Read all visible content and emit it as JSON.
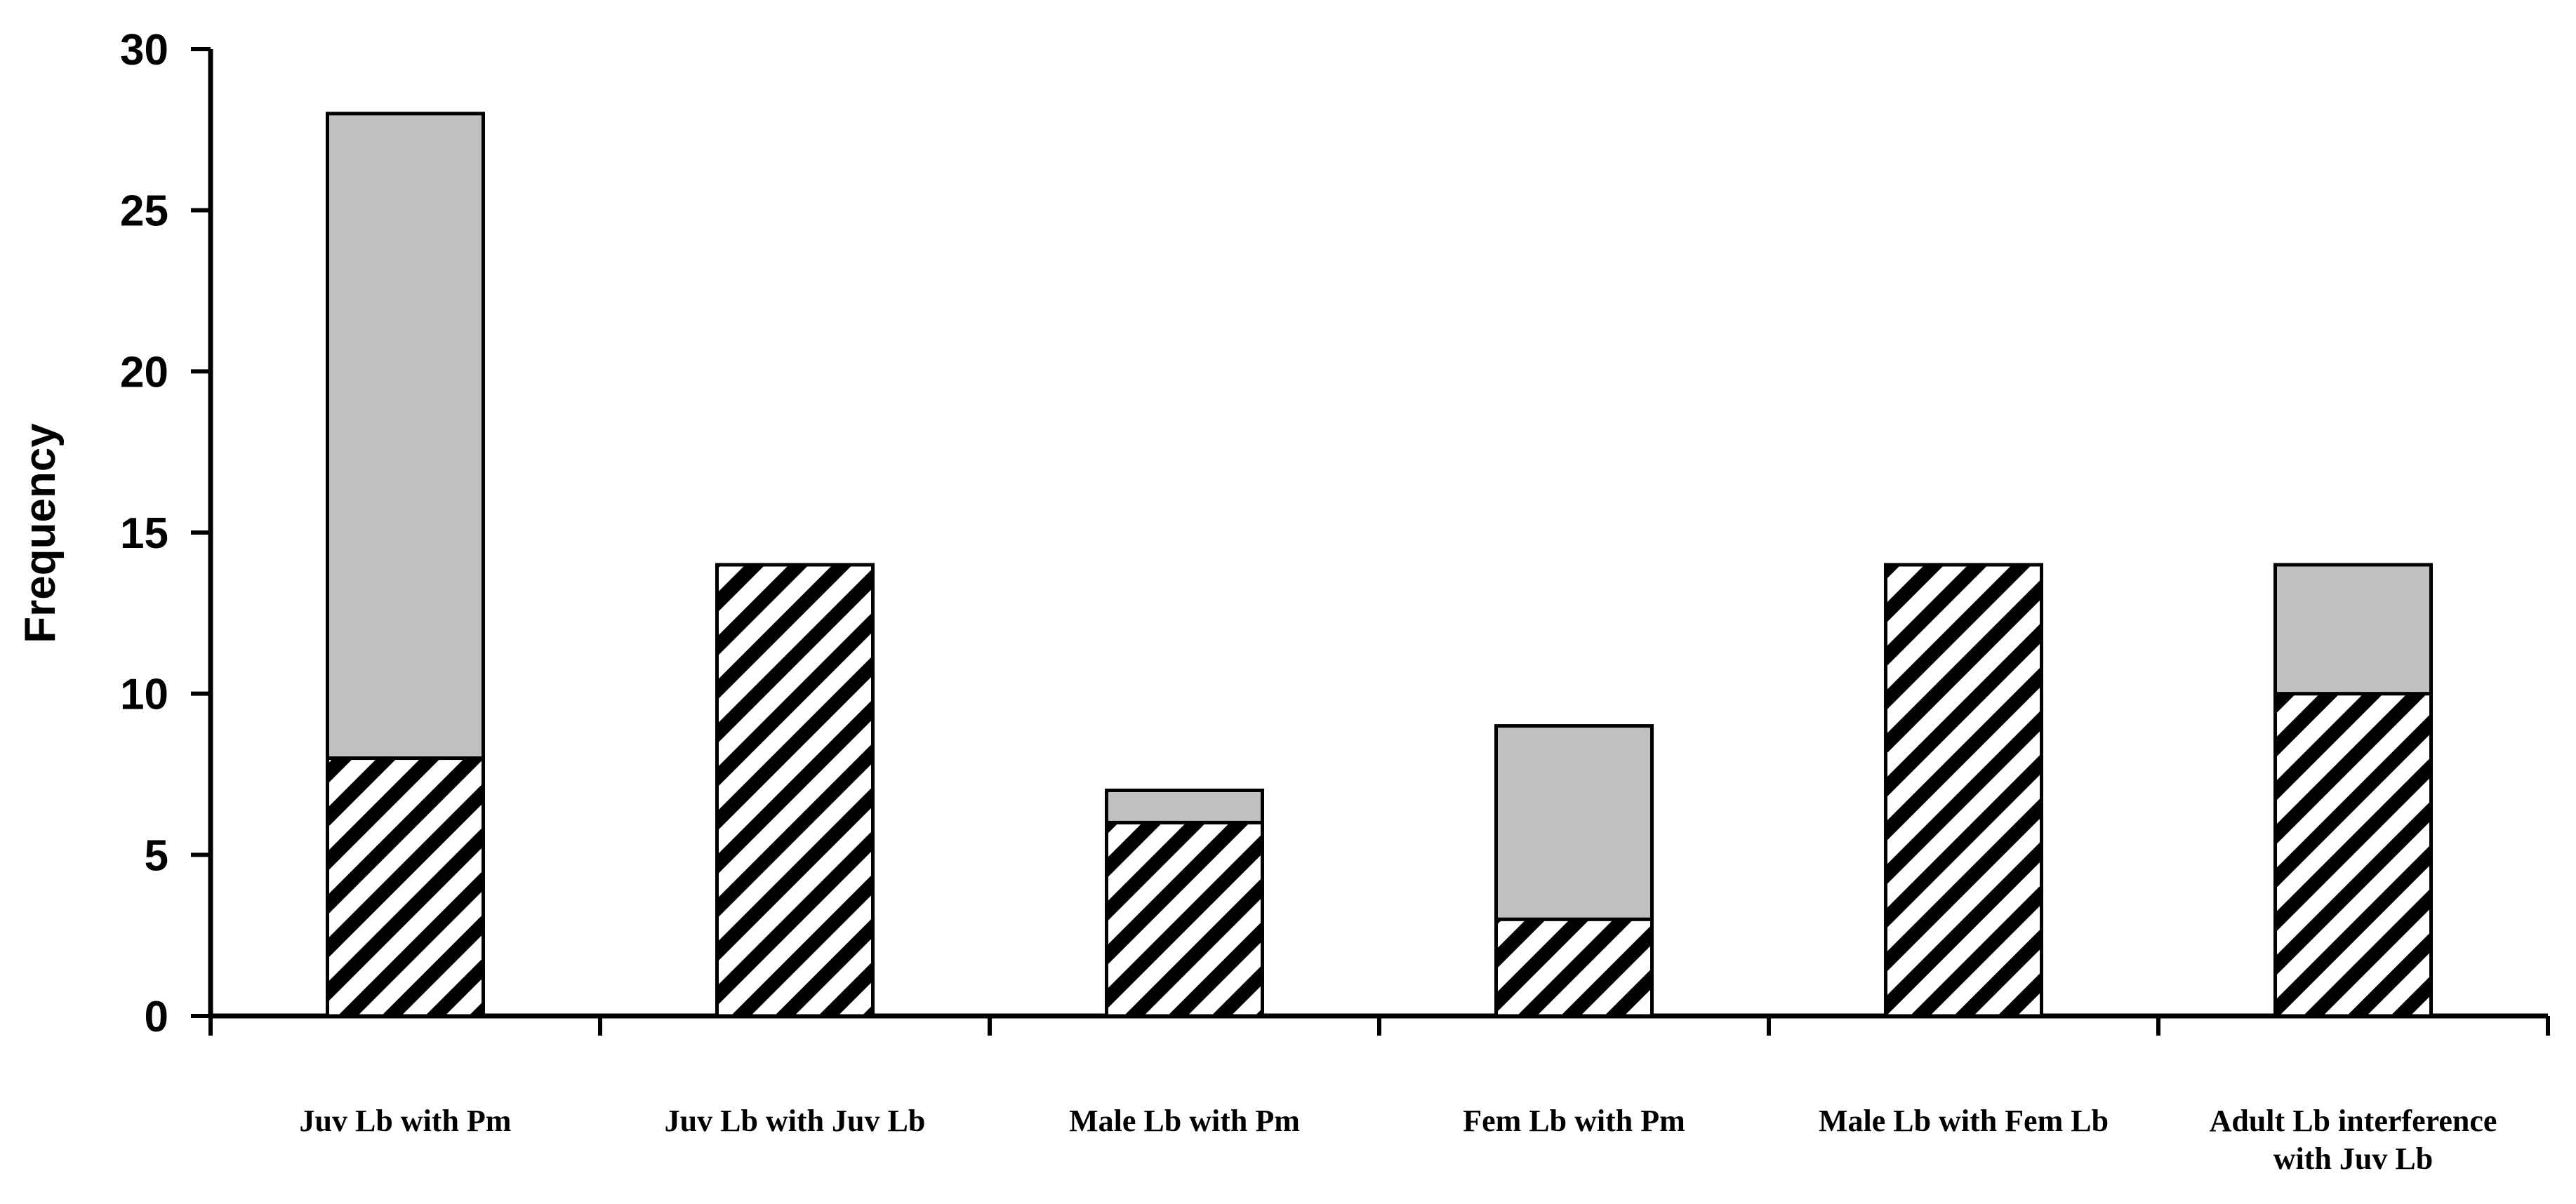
{
  "chart_data": {
    "type": "bar",
    "stacked": true,
    "title": "",
    "xlabel": "",
    "ylabel": "Frequency",
    "ylim": [
      0,
      30
    ],
    "yticks": [
      0,
      5,
      10,
      15,
      20,
      25,
      30
    ],
    "grid": false,
    "legend": "none",
    "categories": [
      [
        "Juv Lb with Pm"
      ],
      [
        "Juv Lb with Juv Lb"
      ],
      [
        "Male Lb with Pm"
      ],
      [
        "Fem Lb with Pm"
      ],
      [
        "Male Lb with Fem Lb"
      ],
      [
        "Adult Lb interference",
        "with Juv Lb"
      ]
    ],
    "series": [
      {
        "values": [
          8,
          14,
          6,
          3,
          14,
          10
        ],
        "pattern": "diagonal-hatch",
        "color": "#000000"
      },
      {
        "values": [
          20,
          0,
          1,
          6,
          0,
          4
        ],
        "pattern": "solid",
        "color": "#c0c0c0"
      }
    ]
  }
}
